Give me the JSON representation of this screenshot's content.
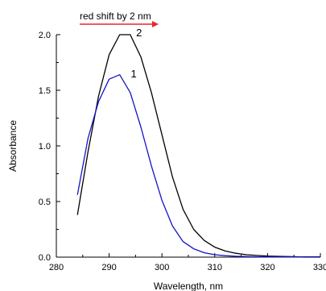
{
  "chart_data": {
    "type": "line",
    "xlabel": "Wavelength, nm",
    "ylabel": "Absorbance",
    "xlim": [
      280,
      330
    ],
    "ylim": [
      0.0,
      2.0
    ],
    "x_ticks": [
      280,
      290,
      300,
      310,
      320,
      330
    ],
    "x_tick_labels": [
      "280",
      "290",
      "300",
      "310",
      "320",
      "330"
    ],
    "y_ticks": [
      0.0,
      0.5,
      1.0,
      1.5,
      2.0
    ],
    "y_tick_labels": [
      "0.0",
      "0.5",
      "1.0",
      "1.5",
      "2.0"
    ],
    "grid": false,
    "annotation": {
      "text": "red shift by 2 nm",
      "arrow_from_x": 291.5,
      "arrow_to_x": 296.5,
      "arrow_color": "#e8262a"
    },
    "series": [
      {
        "label": "2",
        "color": "#000000",
        "label_at": [
          294.5,
          2.0
        ],
        "x": [
          284,
          286,
          288,
          290,
          292,
          294,
          296,
          298,
          300,
          302,
          304,
          306,
          308,
          310,
          312,
          314,
          316,
          318,
          320,
          322,
          324,
          326,
          328,
          330
        ],
        "y": [
          0.38,
          0.95,
          1.45,
          1.82,
          2.0,
          2.0,
          1.8,
          1.48,
          1.1,
          0.72,
          0.43,
          0.25,
          0.15,
          0.09,
          0.055,
          0.035,
          0.022,
          0.015,
          0.01,
          0.007,
          0.005,
          0.003,
          0.002,
          0.002
        ]
      },
      {
        "label": "1",
        "color": "#1414c8",
        "label_at": [
          293.5,
          1.63
        ],
        "x": [
          284,
          286,
          288,
          290,
          292,
          294,
          296,
          298,
          300,
          302,
          304,
          306,
          308,
          310,
          312,
          314,
          316,
          318,
          320,
          322,
          324,
          326,
          328,
          330
        ],
        "y": [
          0.56,
          1.07,
          1.4,
          1.6,
          1.64,
          1.48,
          1.17,
          0.82,
          0.51,
          0.28,
          0.14,
          0.075,
          0.04,
          0.022,
          0.013,
          0.008,
          0.005,
          0.003,
          0.002,
          0.001,
          0.001,
          0.001,
          0.0,
          0.0
        ]
      }
    ]
  }
}
